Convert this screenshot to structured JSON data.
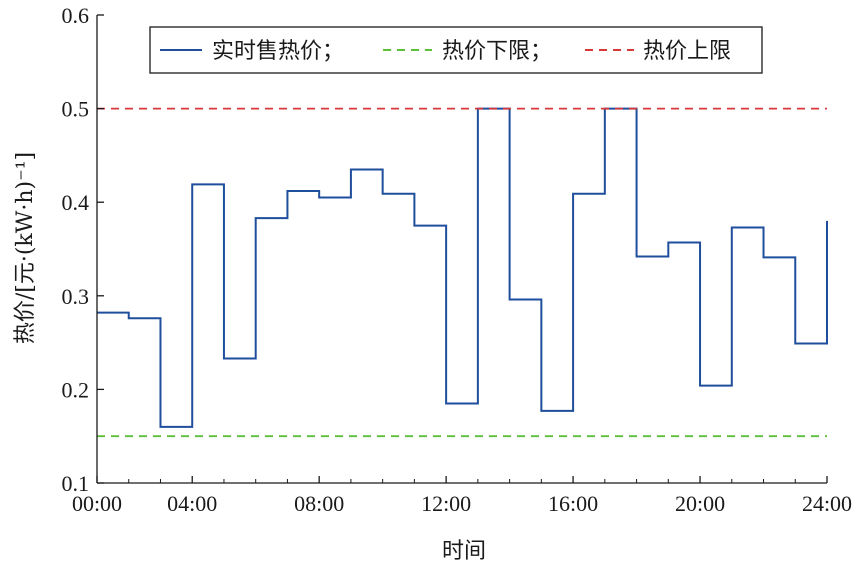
{
  "chart_data": {
    "type": "line",
    "step": true,
    "xlabel": "时间",
    "ylabel": "热价/[元·(kW·h)⁻¹]",
    "xlim": [
      1,
      24
    ],
    "ylim": [
      0.1,
      0.6
    ],
    "x_ticks": [
      {
        "value": 1,
        "label": "00:00"
      },
      {
        "value": 4,
        "label": "04:00"
      },
      {
        "value": 8,
        "label": "08:00"
      },
      {
        "value": 12,
        "label": "12:00"
      },
      {
        "value": 16,
        "label": "16:00"
      },
      {
        "value": 20,
        "label": "20:00"
      },
      {
        "value": 24,
        "label": "24:00"
      }
    ],
    "y_ticks": [
      {
        "value": 0.1,
        "label": "0.1"
      },
      {
        "value": 0.2,
        "label": "0.2"
      },
      {
        "value": 0.3,
        "label": "0.3"
      },
      {
        "value": 0.4,
        "label": "0.4"
      },
      {
        "value": 0.5,
        "label": "0.5"
      },
      {
        "value": 0.6,
        "label": "0.6"
      }
    ],
    "grid": false,
    "legend_position": "top",
    "series": [
      {
        "name": "实时售热价；",
        "style": "solid",
        "color": "#1f4e9c",
        "x": [
          1,
          2,
          3,
          4,
          5,
          6,
          7,
          8,
          9,
          10,
          11,
          12,
          13,
          14,
          15,
          16,
          17,
          18,
          19,
          20,
          21,
          22,
          23,
          24
        ],
        "values": [
          0.282,
          0.276,
          0.16,
          0.419,
          0.233,
          0.383,
          0.412,
          0.405,
          0.435,
          0.409,
          0.375,
          0.185,
          0.5,
          0.296,
          0.177,
          0.409,
          0.5,
          0.342,
          0.357,
          0.204,
          0.373,
          0.341,
          0.249,
          0.38
        ]
      },
      {
        "name": "热价下限；",
        "style": "dashed",
        "color": "#5cbf3a",
        "x": [
          1,
          24
        ],
        "values": [
          0.15,
          0.15
        ]
      },
      {
        "name": "热价上限",
        "style": "dashed",
        "color": "#d9383a",
        "x": [
          1,
          24
        ],
        "values": [
          0.5,
          0.5
        ]
      }
    ]
  }
}
